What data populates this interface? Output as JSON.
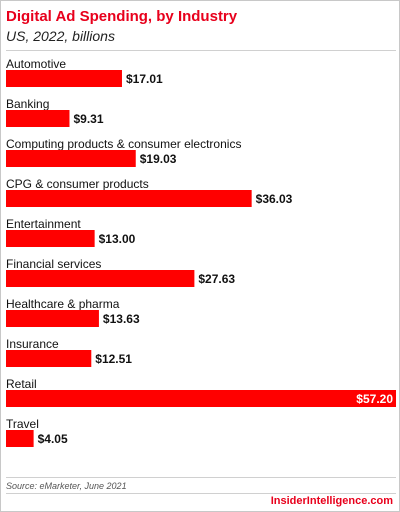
{
  "header": {
    "title": "Digital Ad Spending, by Industry",
    "subtitle": "US, 2022, billions"
  },
  "footer": {
    "source": "Source: eMarketer, June 2021",
    "brand": "InsiderIntelligence.com"
  },
  "colors": {
    "bar": "#ff0000",
    "accent": "#e8001c"
  },
  "chart_data": {
    "type": "bar",
    "orientation": "horizontal",
    "title": "Digital Ad Spending, by Industry",
    "subtitle": "US, 2022, billions",
    "categories": [
      "Automotive",
      "Banking",
      "Computing products & consumer electronics",
      "CPG & consumer products",
      "Entertainment",
      "Financial services",
      "Healthcare & pharma",
      "Insurance",
      "Retail",
      "Travel"
    ],
    "values": [
      17.01,
      9.31,
      19.03,
      36.03,
      13.0,
      27.63,
      13.63,
      12.51,
      57.2,
      4.05
    ],
    "value_labels": [
      "$17.01",
      "$9.31",
      "$19.03",
      "$36.03",
      "$13.00",
      "$27.63",
      "$13.63",
      "$12.51",
      "$57.20",
      "$4.05"
    ],
    "xlim": [
      0,
      57.2
    ],
    "grid": false,
    "legend": "none"
  }
}
